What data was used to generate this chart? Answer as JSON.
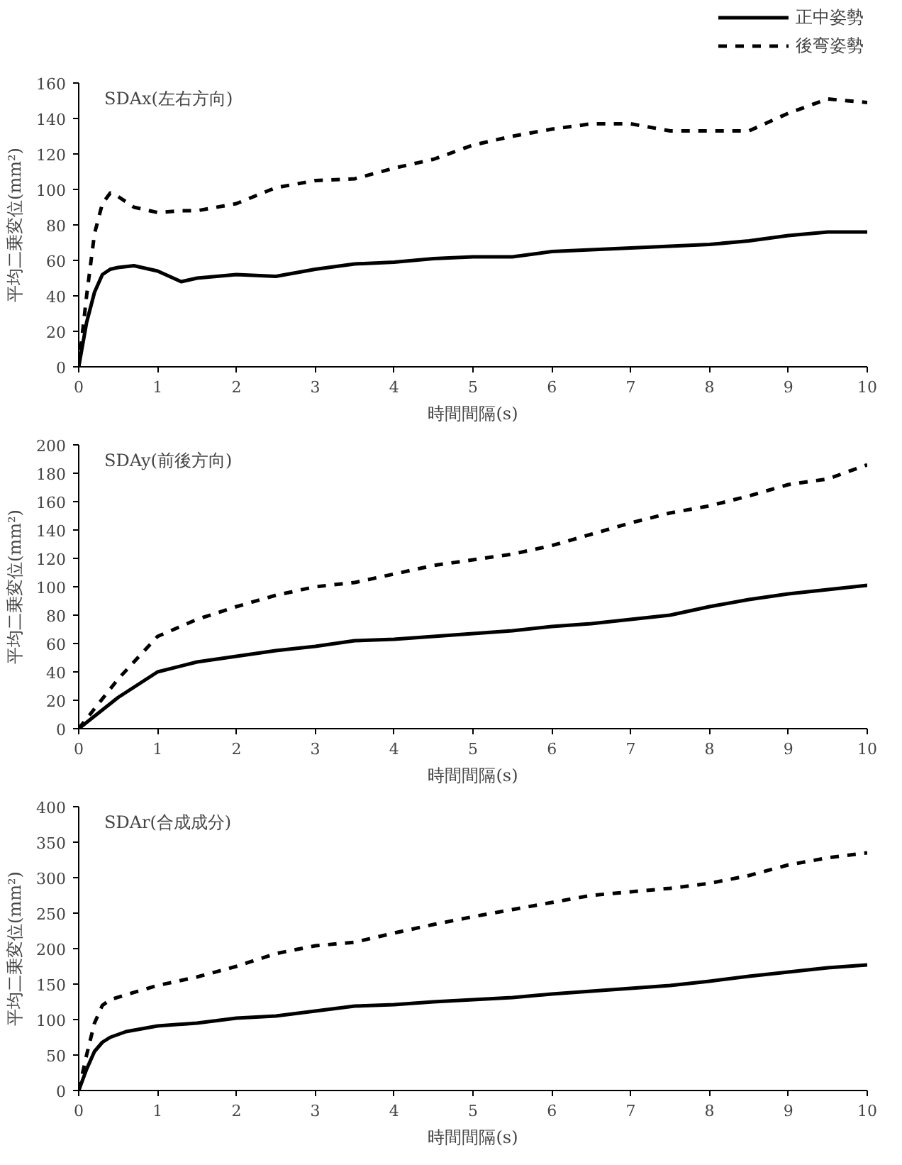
{
  "chart_data": [
    {
      "type": "line",
      "title": "SDAx(左右方向)",
      "xlabel": "時間間隔(s)",
      "ylabel": "平均二乗変位(mm²)",
      "xlim": [
        0,
        10
      ],
      "xticks": [
        0,
        1,
        2,
        3,
        4,
        5,
        6,
        7,
        8,
        9,
        10
      ],
      "ylim": [
        0,
        160
      ],
      "yticks": [
        0,
        20,
        40,
        60,
        80,
        100,
        120,
        140,
        160
      ],
      "grid": false,
      "legend": "top right",
      "x": [
        0,
        0.1,
        0.2,
        0.3,
        0.4,
        0.5,
        0.7,
        1,
        1.3,
        1.5,
        2,
        2.5,
        3,
        3.5,
        4,
        4.5,
        5,
        5.5,
        6,
        6.5,
        7,
        7.5,
        8,
        8.5,
        9,
        9.5,
        10
      ],
      "series": [
        {
          "name": "正中姿勢",
          "color": "#000000",
          "line_style": "solid",
          "values": [
            0,
            25,
            42,
            52,
            55,
            56,
            57,
            54,
            48,
            50,
            52,
            51,
            55,
            58,
            59,
            61,
            62,
            62,
            65,
            66,
            67,
            68,
            69,
            71,
            74,
            76,
            76
          ]
        },
        {
          "name": "後弯姿勢",
          "color": "#000000",
          "line_style": "dashed",
          "values": [
            0,
            40,
            75,
            92,
            98,
            96,
            90,
            87,
            88,
            88,
            92,
            101,
            105,
            106,
            112,
            117,
            125,
            130,
            134,
            137,
            137,
            133,
            133,
            133,
            143,
            151,
            149
          ]
        }
      ]
    },
    {
      "type": "line",
      "title": "SDAy(前後方向)",
      "xlabel": "時間間隔(s)",
      "ylabel": "平均二乗変位(mm²)",
      "xlim": [
        0,
        10
      ],
      "xticks": [
        0,
        1,
        2,
        3,
        4,
        5,
        6,
        7,
        8,
        9,
        10
      ],
      "ylim": [
        0,
        200
      ],
      "yticks": [
        0,
        20,
        40,
        60,
        80,
        100,
        120,
        140,
        160,
        180,
        200
      ],
      "grid": false,
      "x": [
        0,
        0.5,
        1,
        1.5,
        2,
        2.5,
        3,
        3.5,
        4,
        4.5,
        5,
        5.5,
        6,
        6.5,
        7,
        7.5,
        8,
        8.5,
        9,
        9.5,
        10
      ],
      "series": [
        {
          "color": "#000000",
          "line_style": "solid",
          "values": [
            0,
            22,
            40,
            47,
            51,
            55,
            58,
            62,
            63,
            65,
            67,
            69,
            72,
            74,
            77,
            80,
            86,
            91,
            95,
            98,
            101
          ]
        },
        {
          "color": "#000000",
          "line_style": "dashed",
          "values": [
            0,
            35,
            65,
            77,
            86,
            94,
            100,
            103,
            109,
            115,
            119,
            123,
            129,
            137,
            145,
            152,
            157,
            164,
            172,
            176,
            186
          ]
        }
      ]
    },
    {
      "type": "line",
      "title": "SDAr(合成成分)",
      "xlabel": "時間間隔(s)",
      "ylabel": "平均二乗変位(mm²)",
      "xlim": [
        0,
        10
      ],
      "xticks": [
        0,
        1,
        2,
        3,
        4,
        5,
        6,
        7,
        8,
        9,
        10
      ],
      "ylim": [
        0,
        400
      ],
      "yticks": [
        0,
        50,
        100,
        150,
        200,
        250,
        300,
        350,
        400
      ],
      "grid": false,
      "x": [
        0,
        0.1,
        0.2,
        0.3,
        0.4,
        0.6,
        1,
        1.5,
        2,
        2.5,
        3,
        3.5,
        4,
        4.5,
        5,
        5.5,
        6,
        6.5,
        7,
        7.5,
        8,
        8.5,
        9,
        9.5,
        10
      ],
      "series": [
        {
          "color": "#000000",
          "line_style": "solid",
          "values": [
            0,
            30,
            55,
            68,
            75,
            83,
            91,
            95,
            102,
            105,
            112,
            119,
            121,
            125,
            128,
            131,
            136,
            140,
            144,
            148,
            154,
            161,
            167,
            173,
            177
          ]
        },
        {
          "color": "#000000",
          "line_style": "dashed",
          "values": [
            0,
            50,
            95,
            120,
            128,
            135,
            148,
            160,
            175,
            193,
            204,
            209,
            222,
            234,
            245,
            255,
            265,
            275,
            280,
            285,
            292,
            303,
            318,
            328,
            335
          ]
        }
      ]
    }
  ]
}
